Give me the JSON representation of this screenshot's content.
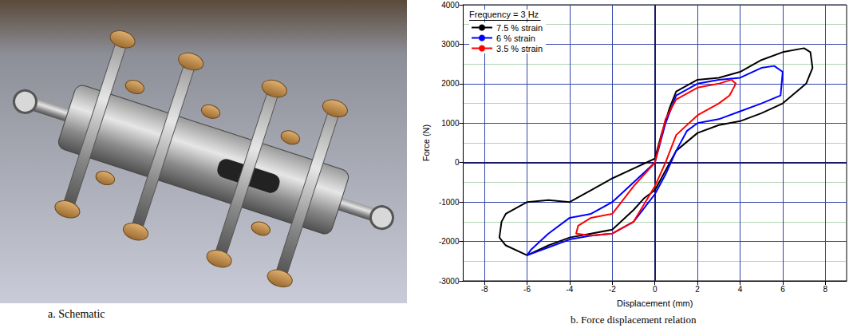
{
  "panel_a": {
    "caption": "a. Schematic"
  },
  "chart_data": {
    "type": "line",
    "caption": "b. Force displacement relation",
    "title": "Frequency = 3 Hz",
    "x_label": "Displacement (mm)",
    "y_label": "Force (N)",
    "xlim": [
      -9,
      9
    ],
    "xticks": [
      -8,
      -6,
      -4,
      -2,
      0,
      2,
      4,
      6,
      8
    ],
    "ylim": [
      -3000,
      4000
    ],
    "yticks": [
      -3000,
      -2000,
      -1000,
      0,
      1000,
      2000,
      3000,
      4000
    ],
    "grid": true,
    "legend": "top-left",
    "marker": "none",
    "series": [
      {
        "name": "7.5 % strain",
        "color": "#000000",
        "x": [
          0,
          0.3,
          0.7,
          1,
          2,
          3,
          4,
          5,
          6,
          7,
          7.3,
          7.4,
          7.1,
          6,
          5,
          4,
          3,
          2,
          1,
          0.3,
          0,
          -0.5,
          -1,
          -2,
          -3,
          -4,
          -5,
          -6,
          -7,
          -7.3,
          -7.2,
          -7,
          -6,
          -5,
          -4,
          -3,
          -2,
          -1,
          0
        ],
        "values": [
          100,
          700,
          1400,
          1800,
          2100,
          2150,
          2300,
          2600,
          2800,
          2900,
          2800,
          2400,
          2000,
          1500,
          1250,
          1050,
          950,
          750,
          300,
          -400,
          -700,
          -900,
          -1200,
          -1700,
          -1800,
          -1900,
          -2100,
          -2350,
          -2100,
          -1900,
          -1500,
          -1300,
          -1000,
          -950,
          -1000,
          -700,
          -400,
          -150,
          100
        ]
      },
      {
        "name": "6 % strain",
        "color": "#0000ff",
        "x": [
          0,
          0.5,
          1,
          2,
          3,
          4,
          5,
          5.6,
          6,
          5.9,
          5,
          4,
          3,
          2,
          1.5,
          1,
          0.5,
          0,
          -1,
          -2,
          -3,
          -4,
          -5,
          -6,
          -5.8,
          -5,
          -4,
          -3,
          -2,
          -1,
          0
        ],
        "values": [
          0,
          1000,
          1700,
          2000,
          2100,
          2150,
          2400,
          2450,
          2300,
          1700,
          1500,
          1300,
          1100,
          1000,
          800,
          300,
          -300,
          -800,
          -1500,
          -1800,
          -1850,
          -1950,
          -2150,
          -2350,
          -2200,
          -1800,
          -1400,
          -1300,
          -1000,
          -500,
          0
        ]
      },
      {
        "name": "3.5 % strain",
        "color": "#ff0000",
        "x": [
          0,
          0.5,
          1,
          2,
          3,
          3.6,
          3.8,
          3.5,
          3,
          2,
          1,
          0.5,
          0,
          -1,
          -2,
          -3,
          -3.7,
          -3.6,
          -3,
          -2,
          -1,
          0
        ],
        "values": [
          0,
          1100,
          1600,
          1900,
          2000,
          2100,
          2000,
          1700,
          1500,
          1200,
          700,
          0,
          -600,
          -1500,
          -1800,
          -1850,
          -1800,
          -1600,
          -1400,
          -1300,
          -600,
          0
        ]
      }
    ]
  }
}
